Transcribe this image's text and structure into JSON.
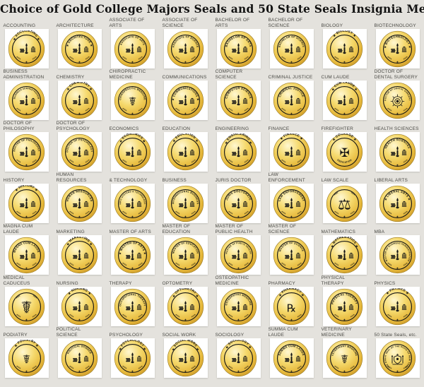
{
  "page": {
    "title": "Choice of Gold College Majors Seals and 50 State Seals Insignia Medallic Logos",
    "background": "#e4e2dd"
  },
  "colors": {
    "gold_highlight": "#fff7d0",
    "gold_light": "#f5d96d",
    "gold_mid": "#e6b83a",
    "gold_deep": "#c9962a",
    "ring_black": "#161616",
    "tile_white": "#ffffff",
    "label_gray": "#4b4b46",
    "title_black": "#121212"
  },
  "grid": {
    "columns": 8,
    "rows": 7,
    "cells": [
      {
        "label": "ACCOUNTING",
        "seal_text": "ACCOUNTING",
        "icon": "torch-columns"
      },
      {
        "label": "ARCHITECTURE",
        "seal_text": "ARCHITECTURE",
        "icon": "torch-columns"
      },
      {
        "label": "ASSOCIATE OF ARTS",
        "seal_text": "ASSOCIATE OF ARTS",
        "icon": "torch-columns"
      },
      {
        "label": "ASSOCIATE OF SCIENCE",
        "seal_text": "ASSOCIATE OF SCIENCE",
        "icon": "torch-columns"
      },
      {
        "label": "BACHELOR OF ARTS",
        "seal_text": "BACHELOR OF ARTS",
        "icon": "torch-columns"
      },
      {
        "label": "BACHELOR OF SCIENCE",
        "seal_text": "BACHELOR OF SCIENCE",
        "icon": "torch-columns"
      },
      {
        "label": "BIOLOGY",
        "seal_text": "BIOLOGY",
        "icon": "torch-columns"
      },
      {
        "label": "BIOTECHNOLOGY",
        "seal_text": "BIOTECHNOLOGY",
        "icon": "torch-columns"
      },
      {
        "label": "BUSINESS ADMINISTRATION",
        "seal_text": "BUSINESS ADMINISTRATION",
        "icon": "torch-columns"
      },
      {
        "label": "CHEMISTRY",
        "seal_text": "CHEMISTRY",
        "icon": "torch-columns"
      },
      {
        "label": "CHIROPRACTIC MEDICINE",
        "seal_text": "CHIROPRACTIC MEDICINE",
        "icon": "caduceus"
      },
      {
        "label": "COMMUNICATIONS",
        "seal_text": "COMMUNICATIONS",
        "icon": "torch-columns"
      },
      {
        "label": "COMPUTER SCIENCE",
        "seal_text": "COMPUTER SCIENCE",
        "icon": "torch-columns"
      },
      {
        "label": "CRIMINAL JUSTICE",
        "seal_text": "CRIMINAL JUSTICE",
        "icon": "torch-columns"
      },
      {
        "label": "CUM LAUDE",
        "seal_text": "CUM LAUDE",
        "icon": "torch-columns"
      },
      {
        "label": "DOCTOR OF DENTAL SURGERY",
        "seal_text": "DOCTOR OF DENTAL SURGERY",
        "icon": "dental-medallion"
      },
      {
        "label": "DOCTOR OF PHILOSOPHY",
        "seal_text": "DOCTOR OF PHILOSOPHY",
        "icon": "torch-columns"
      },
      {
        "label": "DOCTOR OF PSYCHOLOGY",
        "seal_text": "DOCTOR OF PSYCHOLOGY",
        "icon": "torch-columns"
      },
      {
        "label": "ECONOMICS",
        "seal_text": "ECONOMICS",
        "icon": "torch-columns"
      },
      {
        "label": "EDUCATION",
        "seal_text": "EDUCATION",
        "icon": "torch-columns"
      },
      {
        "label": "ENGINEERING",
        "seal_text": "ENGINEERING",
        "icon": "torch-columns"
      },
      {
        "label": "FINANCE",
        "seal_text": "FINANCE",
        "icon": "torch-columns"
      },
      {
        "label": "FIREFIGHTER",
        "seal_text": "COURAGE",
        "seal_text_bottom": "DEDICATION",
        "icon": "maltese-cross"
      },
      {
        "label": "HEALTH SCIENCES",
        "seal_text": "HEALTH SCIENCES",
        "icon": "torch-columns"
      },
      {
        "label": "HISTORY",
        "seal_text": "HISTORY",
        "icon": "torch-columns"
      },
      {
        "label": "HUMAN RESOURCES",
        "seal_text": "HUMAN RESOURCES",
        "icon": "torch-columns"
      },
      {
        "label": "& TECHNOLOGY",
        "seal_text": "INFO SYSTEMS & TECHNOLOGY",
        "icon": "torch-columns"
      },
      {
        "label": "BUSINESS",
        "seal_text": "INTERNATIONAL BUSINESS",
        "icon": "torch-columns"
      },
      {
        "label": "JURIS DOCTOR",
        "seal_text": "JURIS DOCTORATE",
        "icon": "torch-columns"
      },
      {
        "label": "LAW ENFORCEMENT",
        "seal_text": "LAW ENFORCEMENT",
        "icon": "torch-columns"
      },
      {
        "label": "LAW SCALE",
        "seal_text": "",
        "icon": "scales-large"
      },
      {
        "label": "LIBERAL ARTS",
        "seal_text": "LIBERAL ARTS",
        "icon": "torch-columns"
      },
      {
        "label": "MAGNA CUM LAUDE",
        "seal_text": "MAGNA CUM LAUDE",
        "icon": "torch-columns"
      },
      {
        "label": "MARKETING",
        "seal_text": "MARKETING",
        "icon": "torch-columns"
      },
      {
        "label": "MASTER OF ARTS",
        "seal_text": "MASTER OF ARTS",
        "icon": "torch-columns"
      },
      {
        "label": "MASTER OF EDUCATION",
        "seal_text": "MASTER OF EDUCATION",
        "icon": "torch-columns"
      },
      {
        "label": "MASTER OF PUBLIC HEALTH",
        "seal_text": "MASTER OF PUBLIC HEALTH",
        "icon": "torch-columns"
      },
      {
        "label": "MASTER OF SCIENCE",
        "seal_text": "MASTER OF SCIENCE",
        "icon": "torch-columns"
      },
      {
        "label": "MATHEMATICS",
        "seal_text": "MATHEMATICS",
        "icon": "torch-columns"
      },
      {
        "label": "MBA",
        "seal_text": "MASTER OF BUSINESS ADMINISTRATION",
        "icon": "torch-columns"
      },
      {
        "label": "MEDICAL CADUCEUS",
        "seal_text": "",
        "icon": "caduceus-large"
      },
      {
        "label": "NURSING",
        "seal_text": "NURSING",
        "icon": "torch-columns"
      },
      {
        "label": "THERAPY",
        "seal_text": "OCCUPATIONAL THERAPY",
        "icon": "torch-columns"
      },
      {
        "label": "OPTOMETRY",
        "seal_text": "OPTOMETRY",
        "icon": "torch-columns"
      },
      {
        "label": "OSTEOPATHIC MEDICINE",
        "seal_text": "OSTEOPATHIC MEDICINE",
        "icon": "torch-columns"
      },
      {
        "label": "PHARMACY",
        "seal_text": "PHARMACY",
        "icon": "rx-pharmacy"
      },
      {
        "label": "PHYSICAL THERAPY",
        "seal_text": "PHYSICAL THERAPY",
        "icon": "torch-columns"
      },
      {
        "label": "PHYSICS",
        "seal_text": "PHYSICS",
        "icon": "torch-columns"
      },
      {
        "label": "PODIATRY",
        "seal_text": "PODIATRY",
        "icon": "winged-caduceus"
      },
      {
        "label": "POLITICAL SCIENCE",
        "seal_text": "POLITICAL SCIENCE",
        "icon": "torch-columns"
      },
      {
        "label": "PSYCHOLOGY",
        "seal_text": "PSYCHOLOGY",
        "icon": "torch-columns"
      },
      {
        "label": "SOCIAL WORK",
        "seal_text": "SOCIAL WORK",
        "icon": "torch-columns"
      },
      {
        "label": "SOCIOLOGY",
        "seal_text": "SOCIOLOGY",
        "icon": "torch-columns"
      },
      {
        "label": "SUMMA CUM LAUDE",
        "seal_text": "SUMMA CUM LAUDE",
        "icon": "torch-columns"
      },
      {
        "label": "VETERINARY MEDICINE",
        "seal_text": "VETERINARY MEDICINE",
        "icon": "caduceus"
      },
      {
        "label": "50 State Seals, etc.",
        "seal_text": "THE GREAT SEAL OF THE STATE OF NEW YORK",
        "icon": "state-crest"
      }
    ]
  }
}
